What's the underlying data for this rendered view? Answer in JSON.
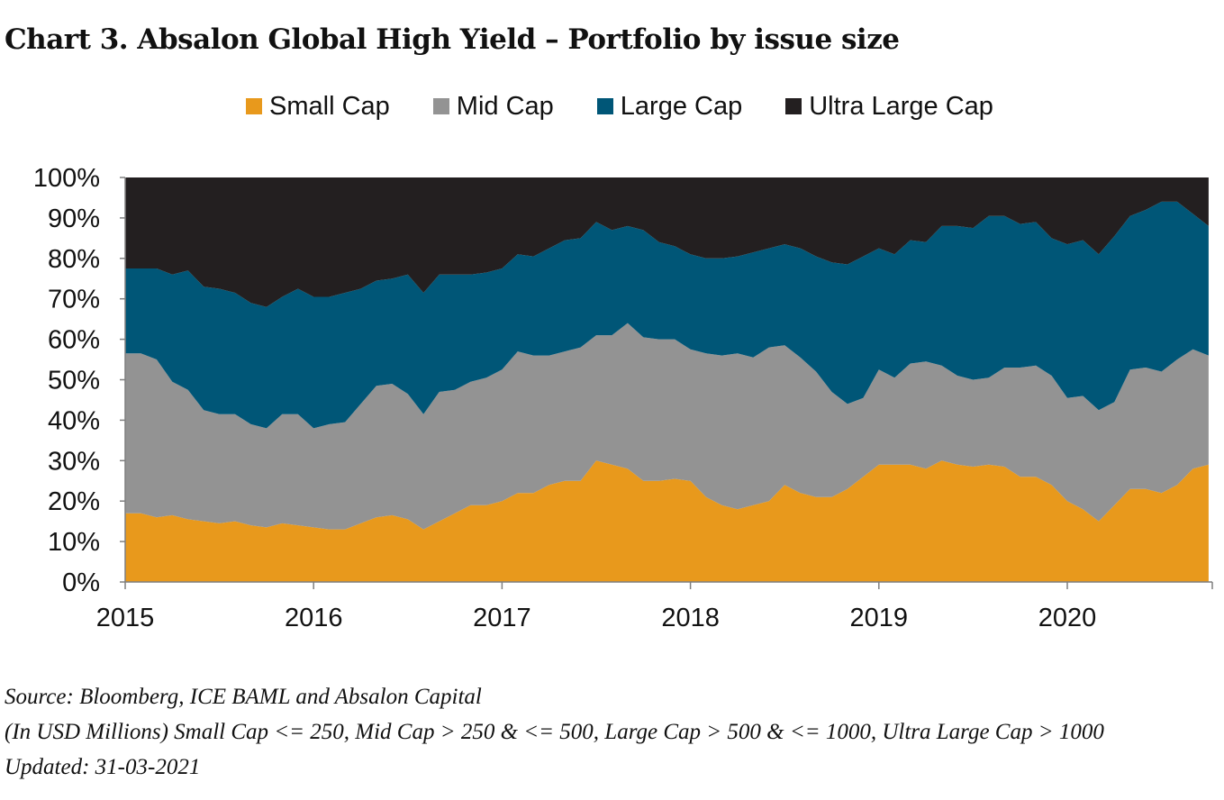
{
  "title": "Chart 3. Absalon Global High Yield – Portfolio by issue size",
  "footnotes": {
    "source": "Source: Bloomberg, ICE BAML and Absalon Capital",
    "definition": "(In USD Millions) Small Cap <= 250, Mid Cap > 250 & <= 500, Large Cap > 500 & <= 1000, Ultra Large Cap > 1000",
    "updated": "Updated: 31-03-2021"
  },
  "chart_data": {
    "type": "area",
    "stacked": true,
    "title": "Chart 3. Absalon Global High Yield – Portfolio by issue size",
    "xlabel": "",
    "ylabel": "",
    "x_start": "2015-01",
    "x_end": "2020-10",
    "x_frequency": "monthly",
    "xlim": [
      "2015-01",
      "2020-10"
    ],
    "ylim": [
      0,
      100
    ],
    "y_unit": "%",
    "x_tick_labels": [
      "2015",
      "2016",
      "2017",
      "2018",
      "2019",
      "2020"
    ],
    "y_tick_labels": [
      "0%",
      "10%",
      "20%",
      "30%",
      "40%",
      "50%",
      "60%",
      "70%",
      "80%",
      "90%",
      "100%"
    ],
    "grid": false,
    "legend_position": "top",
    "legend": [
      "Small Cap",
      "Mid Cap",
      "Large Cap",
      "Ultra Large Cap"
    ],
    "series": [
      {
        "name": "Small Cap",
        "color": "#E8991C",
        "values": [
          17,
          17,
          16,
          16.5,
          15.5,
          15,
          14.5,
          15,
          14,
          13.5,
          14.5,
          14,
          13.5,
          13,
          13,
          14.5,
          16,
          16.5,
          15.5,
          13,
          15,
          17,
          19,
          19,
          20,
          22,
          22,
          24,
          25,
          25,
          30,
          29,
          28,
          25,
          25,
          25.5,
          25,
          21,
          19,
          18,
          19,
          20,
          24,
          22,
          21,
          21,
          23,
          26,
          29,
          29,
          29,
          28,
          30,
          29,
          28.5,
          29,
          28.5,
          26,
          26,
          24,
          20,
          18,
          15,
          19,
          23,
          23,
          22,
          24,
          28,
          29
        ]
      },
      {
        "name": "Mid Cap",
        "color": "#939393",
        "values": [
          39.5,
          39.5,
          39,
          33,
          32,
          27.5,
          27,
          26.5,
          25,
          24.5,
          27,
          27.5,
          24.5,
          26,
          26.5,
          29.5,
          32.5,
          32.5,
          31,
          28.5,
          32,
          30.5,
          30.5,
          31.5,
          32.5,
          35,
          34,
          32,
          32,
          33,
          31,
          32,
          36,
          35.5,
          35,
          34.5,
          32.5,
          35.5,
          37,
          38.5,
          36.5,
          38,
          34.5,
          33.5,
          31,
          26,
          21,
          19.5,
          23.5,
          21.5,
          25,
          26.5,
          23.5,
          22,
          21.5,
          21.5,
          24.5,
          27,
          27.5,
          27,
          25.5,
          28,
          27.5,
          25.5,
          29.5,
          30,
          30,
          31,
          29.5,
          27
        ]
      },
      {
        "name": "Large Cap",
        "color": "#005677",
        "values": [
          21,
          21,
          22.5,
          26.5,
          29.5,
          30.5,
          31,
          30,
          30,
          30,
          29,
          31,
          32.5,
          31.5,
          32,
          28.5,
          26,
          26,
          29.5,
          30,
          29,
          28.5,
          26.5,
          26,
          25,
          24,
          24.5,
          26.5,
          27.5,
          27,
          28,
          26,
          24,
          26.5,
          24,
          23,
          23.5,
          23.5,
          24,
          24,
          26,
          24.5,
          25,
          27,
          28.5,
          32,
          34.5,
          35,
          30,
          30.5,
          30.5,
          29.5,
          34.5,
          37,
          37.5,
          40,
          37.5,
          35.5,
          35.5,
          34,
          38,
          38.5,
          38.5,
          41,
          38,
          39,
          42,
          39,
          33.5,
          32
        ]
      },
      {
        "name": "Ultra Large Cap",
        "color": "#231F20",
        "values": [
          22.5,
          22.5,
          22.5,
          24,
          23,
          27,
          27.5,
          28.5,
          31,
          32,
          29.5,
          27.5,
          29.5,
          29.5,
          28.5,
          27.5,
          25.5,
          25,
          24,
          28.5,
          24,
          24,
          24,
          23.5,
          22.5,
          19,
          19.5,
          17.5,
          15.5,
          15,
          11,
          13,
          12,
          14,
          16,
          17,
          19,
          20,
          20,
          19.5,
          18.5,
          17.5,
          16.5,
          17.5,
          19.5,
          21,
          21.5,
          19.5,
          17.5,
          19,
          15.5,
          16,
          12,
          12,
          12.5,
          10,
          9.5,
          11.5,
          11,
          15,
          16.5,
          15.5,
          19,
          14.5,
          9.5,
          8,
          6,
          6,
          9,
          12
        ]
      }
    ]
  }
}
